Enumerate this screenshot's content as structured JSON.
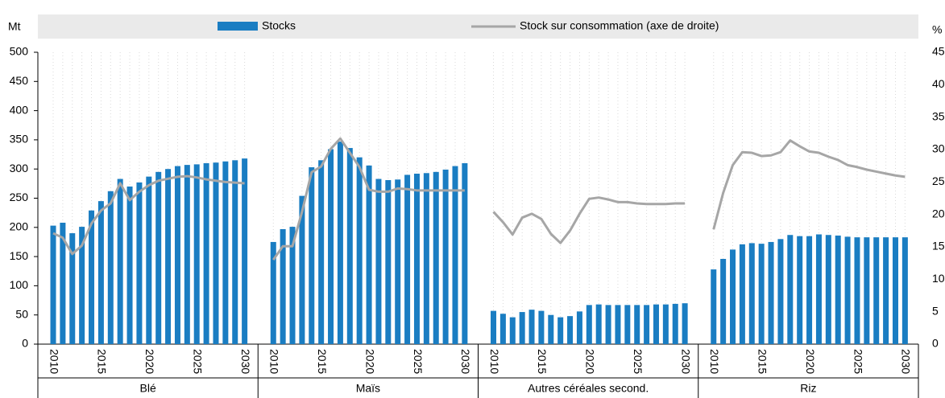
{
  "chart_data": {
    "type": "bar_line",
    "y_label": "Mt",
    "y2_label": "%",
    "groups": [
      "Blé",
      "Maïs",
      "Autres céréales second.",
      "Riz"
    ],
    "x": [
      2010,
      2011,
      2012,
      2013,
      2014,
      2015,
      2016,
      2017,
      2018,
      2019,
      2020,
      2021,
      2022,
      2023,
      2024,
      2025,
      2026,
      2027,
      2028,
      2029,
      2030
    ],
    "xticks": [
      2010,
      2015,
      2020,
      2025,
      2030
    ],
    "ylim": [
      0,
      500
    ],
    "yticks": [
      0,
      50,
      100,
      150,
      200,
      250,
      300,
      350,
      400,
      450,
      500
    ],
    "y2lim": [
      0,
      45
    ],
    "y2ticks": [
      0,
      5,
      10,
      15,
      20,
      25,
      30,
      35,
      40,
      45
    ],
    "grid": true,
    "series": [
      {
        "name": "Stocks",
        "type": "bar",
        "color": "#1a7dc2",
        "values": [
          [
            203,
            208,
            190,
            201,
            229,
            245,
            262,
            283,
            270,
            277,
            287,
            295,
            300,
            305,
            307,
            308,
            310,
            311,
            313,
            315,
            318
          ],
          [
            175,
            197,
            201,
            254,
            303,
            315,
            334,
            347,
            336,
            320,
            306,
            283,
            281,
            282,
            290,
            292,
            293,
            295,
            299,
            305,
            310
          ],
          [
            57,
            52,
            46,
            55,
            59,
            57,
            50,
            46,
            48,
            56,
            67,
            68,
            67,
            67,
            67,
            67,
            67,
            68,
            68,
            69,
            70
          ],
          [
            128,
            146,
            162,
            171,
            173,
            172,
            175,
            180,
            187,
            185,
            185,
            188,
            187,
            186,
            184,
            183,
            183,
            183,
            183,
            183,
            183
          ]
        ]
      },
      {
        "name": "Stock sur consommation (axe de droite)",
        "type": "line",
        "axis": "y2",
        "color": "#a6a6a6",
        "values": [
          [
            17.1,
            16.4,
            13.9,
            15.2,
            18.6,
            20.6,
            21.7,
            24.8,
            22.2,
            23.5,
            24.5,
            25.2,
            25.5,
            25.8,
            25.9,
            25.7,
            25.4,
            25.2,
            25.0,
            24.9,
            24.8
          ],
          [
            13.0,
            15.1,
            15.1,
            20.4,
            26.5,
            27.4,
            30.1,
            31.7,
            29.5,
            27.3,
            23.8,
            23.5,
            23.5,
            24.0,
            23.9,
            23.7,
            23.7,
            23.7,
            23.7,
            23.7,
            23.7
          ],
          [
            20.4,
            18.8,
            16.9,
            19.5,
            20.1,
            19.3,
            17.0,
            15.6,
            17.5,
            20.1,
            22.4,
            22.6,
            22.3,
            21.9,
            21.9,
            21.7,
            21.6,
            21.6,
            21.6,
            21.7,
            21.7
          ],
          [
            17.7,
            23.3,
            27.6,
            29.6,
            29.5,
            29.0,
            29.1,
            29.6,
            31.4,
            30.5,
            29.7,
            29.5,
            28.9,
            28.4,
            27.6,
            27.3,
            26.9,
            26.6,
            26.3,
            26.0,
            25.8
          ]
        ]
      }
    ]
  }
}
